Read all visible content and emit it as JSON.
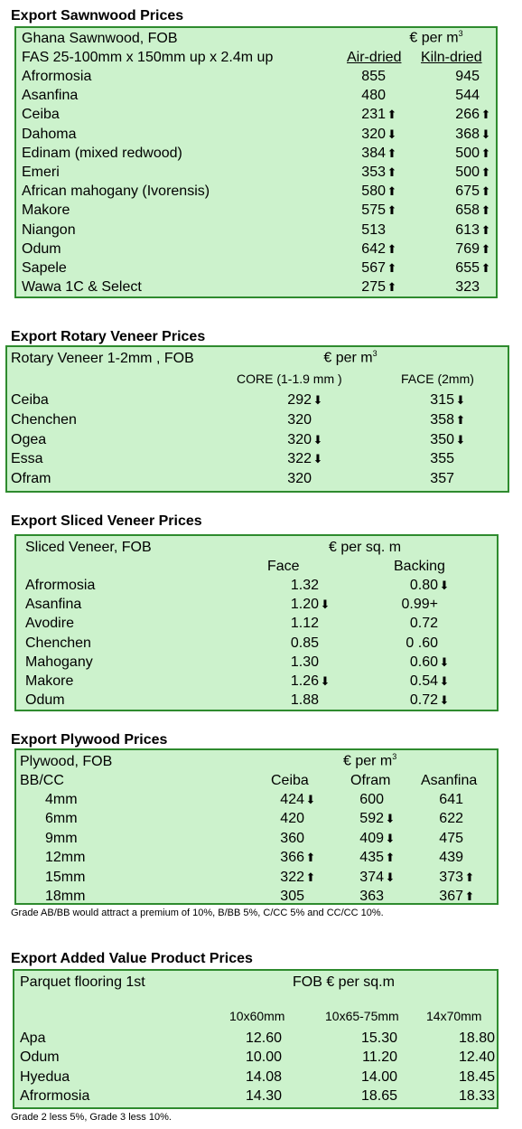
{
  "sawnwood": {
    "title": "Export Sawnwood Prices",
    "head1": "Ghana Sawnwood, FOB",
    "head2": "FAS 25-100mm x 150mm up x 2.4m up",
    "unit": "€ per m",
    "unit_sup": "3",
    "col1": "Air-dried",
    "col2": "Kiln-dried",
    "rows": [
      {
        "name": "Afrormosia",
        "a": "855",
        "a_arrow": "",
        "k": "945",
        "k_arrow": ""
      },
      {
        "name": "Asanfina",
        "a": "480",
        "a_arrow": "",
        "k": "544",
        "k_arrow": ""
      },
      {
        "name": "Ceiba",
        "a": "231",
        "a_arrow": "⬆",
        "k": "266",
        "k_arrow": "⬆"
      },
      {
        "name": "Dahoma",
        "a": "320",
        "a_arrow": "⬇",
        "k": "368",
        "k_arrow": "⬇"
      },
      {
        "name": "Edinam (mixed redwood)",
        "a": "384",
        "a_arrow": "⬆",
        "k": "500",
        "k_arrow": "⬆"
      },
      {
        "name": "Emeri",
        "a": "353",
        "a_arrow": "⬆",
        "k": "500",
        "k_arrow": "⬆"
      },
      {
        "name": "African mahogany (Ivorensis)",
        "a": "580",
        "a_arrow": "⬆",
        "k": "675",
        "k_arrow": "⬆"
      },
      {
        "name": "Makore",
        "a": "575",
        "a_arrow": "⬆",
        "k": "658",
        "k_arrow": "⬆"
      },
      {
        "name": "Niangon",
        "a": "513",
        "a_arrow": "",
        "k": "613",
        "k_arrow": "⬆"
      },
      {
        "name": "Odum",
        "a": "642",
        "a_arrow": "⬆",
        "k": "769",
        "k_arrow": "⬆"
      },
      {
        "name": "Sapele",
        "a": "567",
        "a_arrow": "⬆",
        "k": "655",
        "k_arrow": "⬆"
      },
      {
        "name": "Wawa 1C & Select",
        "a": "275",
        "a_arrow": "⬆",
        "k": "323",
        "k_arrow": ""
      }
    ]
  },
  "rotary": {
    "title": "Export Rotary Veneer Prices",
    "head1": "Rotary Veneer 1-2mm , FOB",
    "unit": "€  per m",
    "unit_sup": "3",
    "col1": "CORE (1-1.9 mm )",
    "col2": "FACE (2mm)",
    "rows": [
      {
        "name": "Ceiba",
        "a": "292",
        "a_arrow": "⬇",
        "k": "315",
        "k_arrow": "⬇"
      },
      {
        "name": "Chenchen",
        "a": "320",
        "a_arrow": "",
        "k": "358",
        "k_arrow": "⬆"
      },
      {
        "name": "Ogea",
        "a": "320",
        "a_arrow": "⬇",
        "k": "350",
        "k_arrow": "⬇"
      },
      {
        "name": "Essa",
        "a": "322",
        "a_arrow": "⬇",
        "k": "355",
        "k_arrow": ""
      },
      {
        "name": "Ofram",
        "a": "320",
        "a_arrow": "",
        "k": "357",
        "k_arrow": ""
      }
    ]
  },
  "sliced": {
    "title": "Export Sliced Veneer Prices",
    "head1": "Sliced Veneer, FOB",
    "unit": "€ per sq. m",
    "col1": "Face",
    "col2": "Backing",
    "rows": [
      {
        "name": "Afrormosia",
        "a": "1.32",
        "a_arrow": "",
        "k": "0.80",
        "k_arrow": "⬇"
      },
      {
        "name": "Asanfina",
        "a": "1.20",
        "a_arrow": "⬇",
        "k": "0.99+",
        "k_arrow": ""
      },
      {
        "name": "Avodire",
        "a": "1.12",
        "a_arrow": "",
        "k": "0.72",
        "k_arrow": ""
      },
      {
        "name": "Chenchen",
        "a": "0.85",
        "a_arrow": "",
        "k": "0 .60",
        "k_arrow": ""
      },
      {
        "name": "Mahogany",
        "a": "1.30",
        "a_arrow": "",
        "k": "0.60",
        "k_arrow": "⬇"
      },
      {
        "name": "Makore",
        "a": "1.26",
        "a_arrow": "⬇",
        "k": "0.54",
        "k_arrow": "⬇"
      },
      {
        "name": "Odum",
        "a": "1.88",
        "a_arrow": "",
        "k": "0.72",
        "k_arrow": "⬇"
      }
    ]
  },
  "plywood": {
    "title": "Export Plywood Prices",
    "head1": "Plywood, FOB",
    "head2": "BB/CC",
    "unit": "€ per m",
    "unit_sup": "3",
    "col1": "Ceiba",
    "col2": "Ofram",
    "col3": "Asanfina",
    "rows": [
      {
        "name": "4mm",
        "a": "424",
        "a_arrow": "⬇",
        "b": "600",
        "b_arrow": "",
        "c": "641",
        "c_arrow": ""
      },
      {
        "name": "6mm",
        "a": "420",
        "a_arrow": "",
        "b": "592",
        "b_arrow": "⬇",
        "c": "622",
        "c_arrow": ""
      },
      {
        "name": "9mm",
        "a": "360",
        "a_arrow": "",
        "b": "409",
        "b_arrow": "⬇",
        "c": "475",
        "c_arrow": ""
      },
      {
        "name": "12mm",
        "a": "366",
        "a_arrow": "⬆",
        "b": "435",
        "b_arrow": "⬆",
        "c": "439",
        "c_arrow": ""
      },
      {
        "name": "15mm",
        "a": "322",
        "a_arrow": "⬆",
        "b": "374",
        "b_arrow": "⬇",
        "c": "373",
        "c_arrow": "⬆"
      },
      {
        "name": "18mm",
        "a": "305",
        "a_arrow": "",
        "b": "363",
        "b_arrow": "",
        "c": "367",
        "c_arrow": "⬆"
      }
    ],
    "note": "Grade AB/BB would attract a premium of 10%, B/BB 5%, C/CC 5% and CC/CC 10%."
  },
  "added": {
    "title": "Export Added Value Product Prices",
    "head1": "Parquet flooring 1st",
    "unit": "FOB € per sq.m",
    "col1": "10x60mm",
    "col2": "10x65-75mm",
    "col3": "14x70mm",
    "rows": [
      {
        "name": "Apa",
        "a": "12.60",
        "b": "15.30",
        "c": "18.80"
      },
      {
        "name": "Odum",
        "a": "10.00",
        "b": "11.20",
        "c": "12.40"
      },
      {
        "name": "Hyedua",
        "a": "14.08",
        "b": "14.00",
        "c": "18.45"
      },
      {
        "name": "Afrormosia",
        "a": "14.30",
        "b": "18.65",
        "c": "18.33"
      }
    ],
    "note": "Grade 2 less 5%, Grade 3 less 10%."
  }
}
